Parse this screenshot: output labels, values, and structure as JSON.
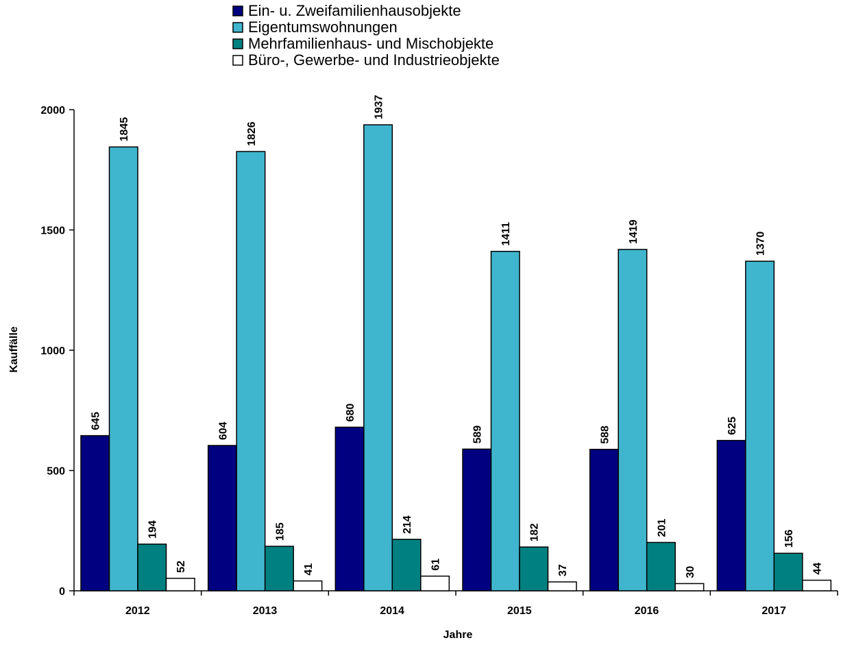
{
  "chart_data": {
    "type": "bar",
    "categories": [
      "2012",
      "2013",
      "2014",
      "2015",
      "2016",
      "2017"
    ],
    "series": [
      {
        "name": "Ein- u. Zweifamilienhausobjekte",
        "values": [
          645,
          604,
          680,
          589,
          588,
          625
        ],
        "color": "#000080"
      },
      {
        "name": "Eigentumswohnungen",
        "values": [
          1845,
          1826,
          1937,
          1411,
          1419,
          1370
        ],
        "color": "#40B5CE"
      },
      {
        "name": "Mehrfamilienhaus- und  Mischobjekte",
        "values": [
          194,
          185,
          214,
          182,
          201,
          156
        ],
        "color": "#008080"
      },
      {
        "name": "Büro-, Gewerbe- und Industrieobjekte",
        "values": [
          52,
          41,
          61,
          37,
          30,
          44
        ],
        "color": "#FFFFFF"
      }
    ],
    "xlabel": "Jahre",
    "ylabel": "Kauffälle",
    "ylim": [
      0,
      2000
    ],
    "yticks": [
      0,
      500,
      1000,
      1500,
      2000
    ],
    "grid": false,
    "legend_position": "top"
  }
}
